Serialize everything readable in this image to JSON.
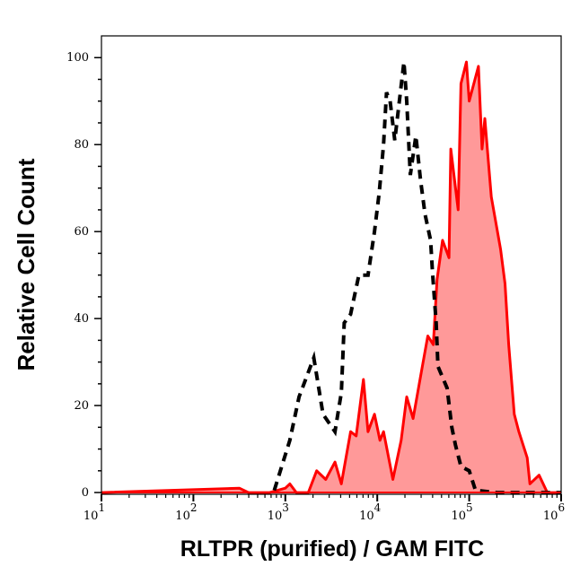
{
  "chart_data": {
    "type": "area",
    "xlabel": "RLTPR (purified) / GAM FITC",
    "ylabel": "Relative Cell Count",
    "xscale": "log",
    "xlim": [
      10,
      1000000
    ],
    "ylim": [
      -0.4,
      105
    ],
    "x_tick_labels": [
      {
        "base": "10",
        "exp": "1",
        "value": 10
      },
      {
        "base": "10",
        "exp": "2",
        "value": 100
      },
      {
        "base": "10",
        "exp": "3",
        "value": 1000
      },
      {
        "base": "10",
        "exp": "4",
        "value": 10000
      },
      {
        "base": "10",
        "exp": "5",
        "value": 100000
      },
      {
        "base": "10",
        "exp": "6",
        "value": 1000000
      }
    ],
    "y_tick_labels": [
      "0",
      "20",
      "40",
      "60",
      "80",
      "100"
    ],
    "y_ticks": [
      0,
      20,
      40,
      60,
      80,
      100
    ],
    "grid": false,
    "series": [
      {
        "style": "filled",
        "line_color": "#ff0000",
        "fill_color": "#ff9999",
        "x": [
          10,
          316,
          398,
          676,
          1000,
          1120,
          1320,
          1780,
          2190,
          2750,
          3470,
          4070,
          5130,
          5890,
          7080,
          7940,
          9330,
          10700,
          11700,
          14800,
          18200,
          20900,
          24500,
          30900,
          35500,
          40700,
          44700,
          51300,
          60300,
          63100,
          75900,
          81300,
          93300,
          100000,
          126000,
          138000,
          148000,
          174000,
          219000,
          245000,
          269000,
          309000,
          347000,
          427000,
          457000,
          575000,
          708000,
          1000000
        ],
        "y": [
          0,
          1,
          0,
          0,
          1,
          2,
          0,
          0,
          5,
          3,
          7,
          2,
          14,
          13,
          26,
          14,
          18,
          12,
          14,
          3,
          12,
          22,
          17,
          29,
          36,
          34,
          49,
          58,
          54,
          79,
          65,
          94,
          99,
          90,
          98,
          79,
          86,
          68,
          56,
          48,
          34,
          18,
          14,
          8,
          2,
          4,
          0,
          0
        ]
      },
      {
        "style": "dashed",
        "line_color": "#000000",
        "x": [
          759,
          1120,
          1410,
          2040,
          2570,
          3470,
          4070,
          4370,
          5130,
          6310,
          7940,
          9330,
          10500,
          11700,
          12600,
          13800,
          15500,
          19500,
          20900,
          22900,
          26300,
          29500,
          33100,
          38000,
          39800,
          43700,
          45700,
          57500,
          64600,
          70800,
          81300,
          100000,
          117000,
          200000,
          457000,
          1000000
        ],
        "y": [
          0.5,
          12,
          22,
          31,
          18,
          14,
          23,
          39,
          41,
          50,
          50,
          60,
          69,
          80,
          92,
          90,
          81,
          99,
          90,
          73,
          82,
          72,
          64,
          58,
          51,
          39,
          29,
          24,
          15,
          11,
          6,
          5,
          0.5,
          0,
          0,
          0
        ]
      }
    ]
  }
}
